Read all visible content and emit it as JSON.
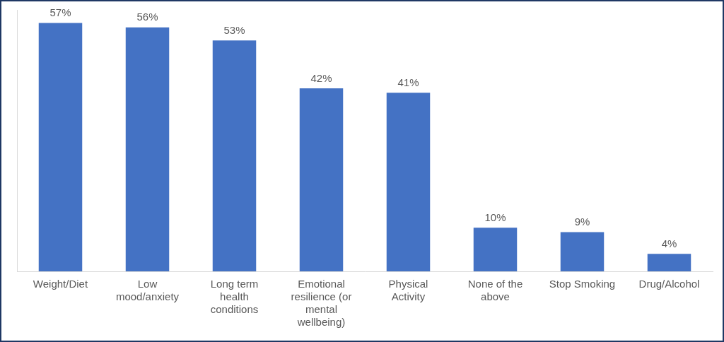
{
  "chart_data": {
    "type": "bar",
    "categories": [
      "Weight/Diet",
      "Low mood/anxiety",
      "Long term health conditions",
      "Emotional resilience (or mental wellbeing)",
      "Physical Activity",
      "None of the above",
      "Stop Smoking",
      "Drug/Alcohol"
    ],
    "values": [
      57,
      56,
      53,
      42,
      41,
      10,
      9,
      4
    ],
    "value_labels": [
      "57%",
      "56%",
      "53%",
      "42%",
      "41%",
      "10%",
      "9%",
      "4%"
    ],
    "color": "#4472c4",
    "ylim": [
      0,
      60
    ],
    "grid": false,
    "data_labels": true,
    "tick_labels": "x"
  }
}
